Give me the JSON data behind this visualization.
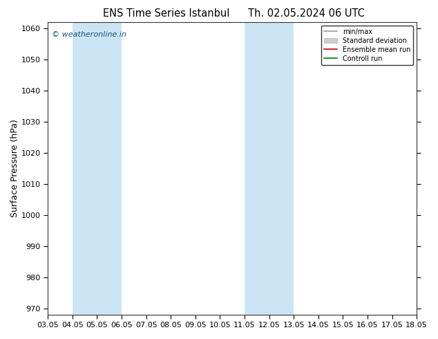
{
  "title_left": "ENS Time Series Istanbul",
  "title_right": "Th. 02.05.2024 06 UTC",
  "ylabel": "Surface Pressure (hPa)",
  "ylim": [
    968,
    1062
  ],
  "yticks": [
    970,
    980,
    990,
    1000,
    1010,
    1020,
    1030,
    1040,
    1050,
    1060
  ],
  "xtick_labels": [
    "03.05",
    "04.05",
    "05.05",
    "06.05",
    "07.05",
    "08.05",
    "09.05",
    "10.05",
    "11.05",
    "12.05",
    "13.05",
    "14.05",
    "15.05",
    "16.05",
    "17.05",
    "18.05"
  ],
  "shaded_regions": [
    {
      "xstart": 1,
      "xend": 3,
      "color": "#cce5f5"
    },
    {
      "xstart": 8,
      "xend": 10,
      "color": "#cce5f5"
    }
  ],
  "watermark_text": "© weatheronline.in",
  "watermark_color": "#1a5276",
  "legend_items": [
    {
      "label": "min/max",
      "color": "#999999",
      "lw": 1.2,
      "type": "line"
    },
    {
      "label": "Standard deviation",
      "color": "#cccccc",
      "lw": 6,
      "type": "patch"
    },
    {
      "label": "Ensemble mean run",
      "color": "#cc0000",
      "lw": 1.2,
      "type": "line"
    },
    {
      "label": "Controll run",
      "color": "#007700",
      "lw": 1.2,
      "type": "line"
    }
  ],
  "background_color": "#ffffff",
  "plot_bg_color": "#ffffff",
  "title_fontsize": 10.5,
  "tick_fontsize": 8,
  "ylabel_fontsize": 9
}
